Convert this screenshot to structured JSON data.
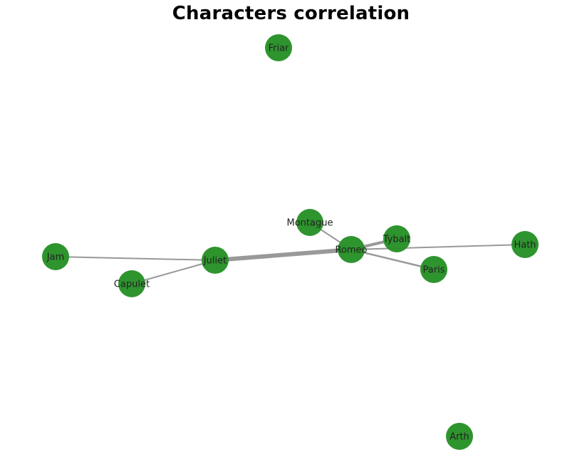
{
  "title": "Characters correlation",
  "colors": {
    "node_fill": "#2a922a",
    "node_stroke": "#2a922a",
    "edge": "#999999",
    "label": "#222222",
    "background": "#ffffff"
  },
  "nodes": [
    {
      "id": "Friar",
      "label": "Friar"
    },
    {
      "id": "Montague",
      "label": "Montague"
    },
    {
      "id": "Tybalt",
      "label": "Tybalt"
    },
    {
      "id": "Romeo",
      "label": "Romeo"
    },
    {
      "id": "Hath",
      "label": "Hath"
    },
    {
      "id": "Jam",
      "label": "Jam"
    },
    {
      "id": "Juliet",
      "label": "Juliet"
    },
    {
      "id": "Paris",
      "label": "Paris"
    },
    {
      "id": "Capulet",
      "label": "Capulet"
    },
    {
      "id": "Arth",
      "label": "Arth"
    }
  ],
  "edges": [
    {
      "source": "Juliet",
      "target": "Romeo",
      "weight": 6
    },
    {
      "source": "Romeo",
      "target": "Tybalt",
      "weight": 4
    },
    {
      "source": "Romeo",
      "target": "Paris",
      "weight": 2.5
    },
    {
      "source": "Romeo",
      "target": "Hath",
      "weight": 2
    },
    {
      "source": "Romeo",
      "target": "Montague",
      "weight": 2
    },
    {
      "source": "Jam",
      "target": "Juliet",
      "weight": 2
    },
    {
      "source": "Capulet",
      "target": "Juliet",
      "weight": 2
    }
  ]
}
